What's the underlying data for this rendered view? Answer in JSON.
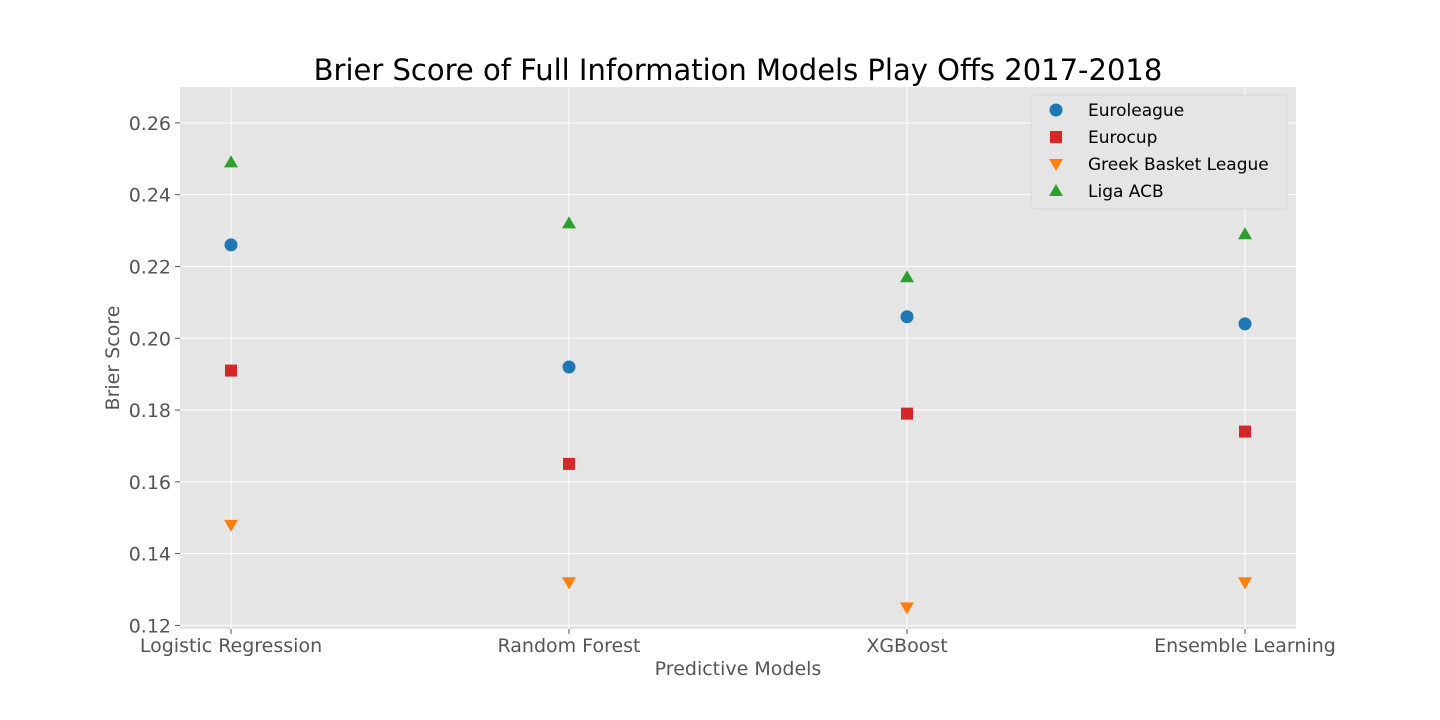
{
  "chart_data": {
    "type": "scatter",
    "title": "Brier Score of Full Information Models Play Offs 2017-2018",
    "xlabel": "Predictive Models",
    "ylabel": "Brier Score",
    "categories": [
      "Logistic Regression",
      "Random Forest",
      "XGBoost",
      "Ensemble Learning"
    ],
    "ylim": [
      0.119,
      0.27
    ],
    "yticks": [
      0.12,
      0.14,
      0.16,
      0.18,
      0.2,
      0.22,
      0.24,
      0.26
    ],
    "ytick_labels": [
      "0.12",
      "0.14",
      "0.16",
      "0.18",
      "0.20",
      "0.22",
      "0.24",
      "0.26"
    ],
    "grid": true,
    "legend_position": "top-right",
    "background": "#e5e5e5",
    "series": [
      {
        "name": "Euroleague",
        "marker": "circle",
        "color": "#1f77b4",
        "values": [
          0.226,
          0.192,
          0.206,
          0.204
        ]
      },
      {
        "name": "Eurocup",
        "marker": "square",
        "color": "#d62728",
        "values": [
          0.191,
          0.165,
          0.179,
          0.174
        ]
      },
      {
        "name": "Greek Basket League",
        "marker": "triangle-down",
        "color": "#ff7f0e",
        "values": [
          0.148,
          0.132,
          0.125,
          0.132
        ]
      },
      {
        "name": "Liga ACB",
        "marker": "triangle-up",
        "color": "#2ca02c",
        "values": [
          0.249,
          0.232,
          0.217,
          0.229
        ]
      }
    ]
  }
}
